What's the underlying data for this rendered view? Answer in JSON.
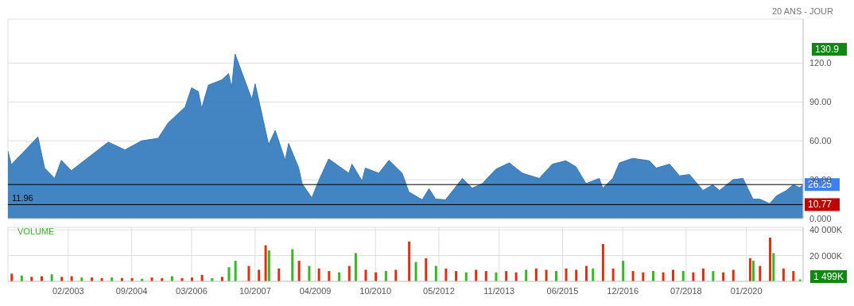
{
  "chart_data": [
    {
      "type": "area",
      "subtitle": "20 ANS - JOUR",
      "color": "#2f78bd",
      "x": [
        "2001-08",
        "2001-09",
        "2002-05",
        "2002-07",
        "2002-10",
        "2002-12",
        "2003-03",
        "2004-02",
        "2004-07",
        "2004-12",
        "2005-05",
        "2005-08",
        "2006-01",
        "2006-03",
        "2006-05",
        "2006-06",
        "2006-08",
        "2006-12",
        "2007-02",
        "2007-03",
        "2007-04",
        "2007-09",
        "2007-10",
        "2008-02",
        "2008-04",
        "2008-07",
        "2008-08",
        "2008-11",
        "2008-12",
        "2009-03",
        "2009-05",
        "2009-08",
        "2010-02",
        "2010-03",
        "2010-06",
        "2010-07",
        "2010-11",
        "2011-02",
        "2011-06",
        "2011-08",
        "2011-12",
        "2012-02",
        "2012-04",
        "2012-07",
        "2012-12",
        "2013-03",
        "2013-06",
        "2013-10",
        "2014-02",
        "2014-06",
        "2014-11",
        "2015-03",
        "2015-07",
        "2015-10",
        "2016-01",
        "2016-05",
        "2016-06",
        "2016-09",
        "2016-11",
        "2017-03",
        "2017-08",
        "2017-10",
        "2018-02",
        "2018-05",
        "2018-08",
        "2018-12",
        "2019-03",
        "2019-05",
        "2019-09",
        "2019-12",
        "2020-03",
        "2020-05",
        "2020-08",
        "2020-10",
        "2021-01",
        "2021-03",
        "2021-05",
        "2021-06"
      ],
      "values": [
        52,
        41.6,
        63,
        39,
        31,
        45,
        37,
        59,
        53,
        60,
        62,
        74,
        86,
        101,
        98,
        85,
        103,
        107,
        112,
        101,
        127,
        92,
        104,
        57,
        68,
        45,
        58,
        39,
        27,
        16,
        29,
        46,
        35,
        42,
        29,
        39,
        35,
        45,
        35,
        20.5,
        14.5,
        23,
        15,
        14.5,
        31,
        23.5,
        27,
        38,
        43,
        35,
        31,
        42,
        44.6,
        40,
        27,
        31,
        23.5,
        31,
        43,
        46.5,
        44.6,
        39,
        42,
        33,
        34,
        21.7,
        26,
        21.7,
        30,
        31,
        15,
        15,
        11.5,
        17.5,
        21.7,
        26,
        24,
        26
      ],
      "xlim": [
        "2001-08",
        "2021-06"
      ],
      "xticks": [
        {
          "value": "2003-02",
          "label": null
        },
        {
          "value": "2004-09",
          "label": null
        },
        {
          "value": "2006-03",
          "label": null
        },
        {
          "value": "2007-10",
          "label": null
        },
        {
          "value": "2009-04",
          "label": null
        },
        {
          "value": "2010-10",
          "label": null
        },
        {
          "value": "2012-05",
          "label": null
        },
        {
          "value": "2013-11",
          "label": null
        },
        {
          "value": "2015-06",
          "label": null
        },
        {
          "value": "2016-12",
          "label": null
        },
        {
          "value": "2018-07",
          "label": null
        },
        {
          "value": "2020-01",
          "label": null
        }
      ],
      "ylim": [
        0,
        154
      ],
      "yticks": [
        {
          "value": 0,
          "label": "0.000"
        },
        {
          "value": 30,
          "label": "30.00"
        },
        {
          "value": 60,
          "label": "60.00"
        },
        {
          "value": 90,
          "label": "90.00"
        },
        {
          "value": 120,
          "label": "120.0"
        }
      ],
      "ref_lines": [
        {
          "axis": "y",
          "value": 26.25,
          "label": "26.25",
          "color": "#000000"
        },
        {
          "axis": "y",
          "value": 10.77,
          "label": "10.77",
          "color": "#000000"
        }
      ],
      "annotations": [
        "130.9",
        {
          "text": "11.96",
          "x": "2001-08",
          "y": 11.96
        }
      ],
      "grid": true,
      "tick_labels": "y"
    },
    {
      "type": "bar",
      "title": "VOLUME",
      "x": [
        "2001-09",
        "2001-12",
        "2002-03",
        "2002-06",
        "2002-09",
        "2002-12",
        "2003-03",
        "2003-06",
        "2003-09",
        "2003-12",
        "2004-03",
        "2004-06",
        "2004-09",
        "2004-12",
        "2005-03",
        "2005-06",
        "2005-09",
        "2005-12",
        "2006-03",
        "2006-06",
        "2006-09",
        "2006-12",
        "2007-02",
        "2007-04",
        "2007-08",
        "2007-11",
        "2008-01",
        "2008-02",
        "2008-05",
        "2008-09",
        "2008-11",
        "2009-02",
        "2009-05",
        "2009-08",
        "2009-11",
        "2010-02",
        "2010-04",
        "2010-07",
        "2010-10",
        "2011-01",
        "2011-04",
        "2011-08",
        "2011-10",
        "2012-01",
        "2012-04",
        "2012-07",
        "2012-10",
        "2013-01",
        "2013-04",
        "2013-07",
        "2013-10",
        "2014-01",
        "2014-04",
        "2014-07",
        "2014-10",
        "2015-01",
        "2015-04",
        "2015-07",
        "2015-10",
        "2016-01",
        "2016-03",
        "2016-06",
        "2016-09",
        "2016-12",
        "2017-03",
        "2017-06",
        "2017-09",
        "2017-12",
        "2018-03",
        "2018-06",
        "2018-09",
        "2018-12",
        "2019-03",
        "2019-06",
        "2019-09",
        "2020-02",
        "2020-03",
        "2020-05",
        "2020-08",
        "2020-09",
        "2020-12",
        "2021-03",
        "2021-05"
      ],
      "values": [
        6000,
        4500,
        3500,
        4000,
        5500,
        3500,
        4000,
        3000,
        3000,
        2500,
        3000,
        2500,
        2500,
        2000,
        3000,
        2500,
        4000,
        2500,
        3000,
        5000,
        2500,
        3500,
        11000,
        16000,
        12000,
        9000,
        28000,
        24000,
        10000,
        25000,
        16000,
        12000,
        10000,
        8000,
        7000,
        12000,
        22000,
        9000,
        7000,
        8000,
        9000,
        31000,
        15000,
        18000,
        12000,
        10000,
        8000,
        7000,
        9000,
        8000,
        7000,
        8000,
        7000,
        9000,
        10000,
        9000,
        8000,
        10000,
        9000,
        12000,
        10000,
        29000,
        10000,
        16000,
        8000,
        7000,
        8000,
        7000,
        9000,
        8000,
        7000,
        10000,
        8000,
        7000,
        9000,
        18000,
        16000,
        12000,
        34000,
        22000,
        10000,
        8000,
        1500
      ],
      "colors": [
        "#e03010",
        "#33bb22",
        "#e03010",
        "#e03010",
        "#33bb22",
        "#e03010",
        "#e03010",
        "#33bb22",
        "#e03010",
        "#e03010",
        "#33bb22",
        "#e03010",
        "#e03010",
        "#33bb22",
        "#e03010",
        "#e03010",
        "#33bb22",
        "#e03010",
        "#e03010",
        "#e03010",
        "#33bb22",
        "#e03010",
        "#33bb22",
        "#33bb22",
        "#e03010",
        "#e03010",
        "#e03010",
        "#33bb22",
        "#e03010",
        "#33bb22",
        "#e03010",
        "#33bb22",
        "#e03010",
        "#e03010",
        "#33bb22",
        "#e03010",
        "#33bb22",
        "#e03010",
        "#e03010",
        "#33bb22",
        "#e03010",
        "#e03010",
        "#33bb22",
        "#e03010",
        "#33bb22",
        "#e03010",
        "#e03010",
        "#33bb22",
        "#e03010",
        "#e03010",
        "#33bb22",
        "#e03010",
        "#e03010",
        "#33bb22",
        "#e03010",
        "#e03010",
        "#33bb22",
        "#e03010",
        "#e03010",
        "#e03010",
        "#33bb22",
        "#e03010",
        "#e03010",
        "#33bb22",
        "#e03010",
        "#e03010",
        "#33bb22",
        "#e03010",
        "#e03010",
        "#33bb22",
        "#e03010",
        "#e03010",
        "#33bb22",
        "#e03010",
        "#e03010",
        "#e03010",
        "#33bb22",
        "#e03010",
        "#e03010",
        "#33bb22",
        "#e03010",
        "#e03010",
        "#33bb22"
      ],
      "xlim": [
        "2001-08",
        "2021-06"
      ],
      "xticks": [
        {
          "value": "2003-02",
          "label": "02/2003"
        },
        {
          "value": "2004-09",
          "label": "09/2004"
        },
        {
          "value": "2006-03",
          "label": "03/2006"
        },
        {
          "value": "2007-10",
          "label": "10/2007"
        },
        {
          "value": "2009-04",
          "label": "04/2009"
        },
        {
          "value": "2010-10",
          "label": "10/2010"
        },
        {
          "value": "2012-05",
          "label": "05/2012"
        },
        {
          "value": "2013-11",
          "label": "11/2013"
        },
        {
          "value": "2015-06",
          "label": "06/2015"
        },
        {
          "value": "2016-12",
          "label": "12/2016"
        },
        {
          "value": "2018-07",
          "label": "07/2018"
        },
        {
          "value": "2020-01",
          "label": "01/2020"
        }
      ],
      "ylim": [
        0,
        42000
      ],
      "yticks": [
        {
          "value": 20000,
          "label": "20 000K"
        },
        {
          "value": 40000,
          "label": "40 000K"
        }
      ],
      "annotations": [
        "1 499K"
      ],
      "grid": true
    }
  ]
}
